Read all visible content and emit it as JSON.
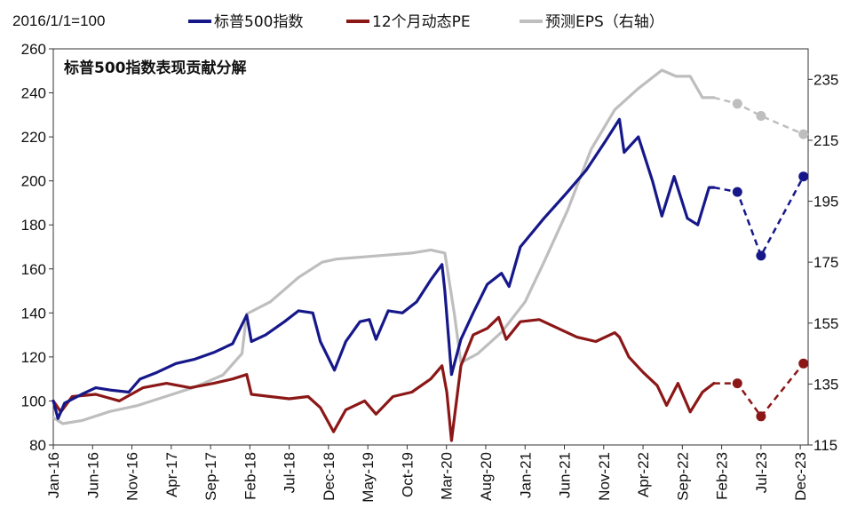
{
  "chart_data": {
    "type": "line",
    "base_note": "2016/1/1=100",
    "inner_title": "标普500指数表现贡献分解",
    "x_tick_labels": [
      "Jan-16",
      "Jun-16",
      "Nov-16",
      "Apr-17",
      "Sep-17",
      "Feb-18",
      "Jul-18",
      "Dec-18",
      "May-19",
      "Oct-19",
      "Mar-20",
      "Aug-20",
      "Jan-21",
      "Jun-21",
      "Nov-21",
      "Apr-22",
      "Sep-22",
      "Feb-23",
      "Jul-23",
      "Dec-23"
    ],
    "x_range": [
      "2016-01",
      "2023-12"
    ],
    "y_left": {
      "min": 80,
      "max": 260,
      "ticks": [
        "80",
        "100",
        "120",
        "140",
        "160",
        "180",
        "200",
        "220",
        "240",
        "260"
      ]
    },
    "y_right": {
      "min": 115,
      "max": 245,
      "ticks": [
        "115",
        "135",
        "155",
        "175",
        "195",
        "215",
        "235"
      ]
    },
    "grid": false,
    "legend_position": "top",
    "series": [
      {
        "name": "标普500指数",
        "color": "#16188A",
        "axis": "left",
        "values": [
          [
            2016.0,
            100
          ],
          [
            2016.05,
            92
          ],
          [
            2016.12,
            99
          ],
          [
            2016.3,
            103
          ],
          [
            2016.45,
            106
          ],
          [
            2016.6,
            105
          ],
          [
            2016.8,
            104
          ],
          [
            2016.92,
            110
          ],
          [
            2017.1,
            113
          ],
          [
            2017.3,
            117
          ],
          [
            2017.5,
            119
          ],
          [
            2017.7,
            122
          ],
          [
            2017.9,
            126
          ],
          [
            2018.05,
            139
          ],
          [
            2018.1,
            127
          ],
          [
            2018.25,
            130
          ],
          [
            2018.45,
            136
          ],
          [
            2018.6,
            141
          ],
          [
            2018.75,
            140
          ],
          [
            2018.83,
            127
          ],
          [
            2018.98,
            114
          ],
          [
            2019.1,
            127
          ],
          [
            2019.25,
            136
          ],
          [
            2019.35,
            137
          ],
          [
            2019.42,
            128
          ],
          [
            2019.55,
            141
          ],
          [
            2019.7,
            140
          ],
          [
            2019.85,
            145
          ],
          [
            2020.0,
            155
          ],
          [
            2020.12,
            162
          ],
          [
            2020.15,
            150
          ],
          [
            2020.22,
            112
          ],
          [
            2020.32,
            128
          ],
          [
            2020.45,
            140
          ],
          [
            2020.6,
            153
          ],
          [
            2020.75,
            158
          ],
          [
            2020.83,
            152
          ],
          [
            2020.95,
            170
          ],
          [
            2021.2,
            183
          ],
          [
            2021.45,
            195
          ],
          [
            2021.65,
            205
          ],
          [
            2021.85,
            218
          ],
          [
            2022.0,
            228
          ],
          [
            2022.05,
            213
          ],
          [
            2022.2,
            220
          ],
          [
            2022.35,
            200
          ],
          [
            2022.45,
            184
          ],
          [
            2022.58,
            202
          ],
          [
            2022.72,
            183
          ],
          [
            2022.83,
            180
          ],
          [
            2022.95,
            197
          ],
          [
            2023.0,
            197
          ]
        ],
        "forecast": [
          [
            2023.0,
            197
          ],
          [
            2023.25,
            195
          ],
          [
            2023.5,
            166
          ],
          [
            2023.95,
            202
          ]
        ]
      },
      {
        "name": "12个月动态PE",
        "color": "#8B1717",
        "axis": "left",
        "values": [
          [
            2016.0,
            100
          ],
          [
            2016.08,
            95
          ],
          [
            2016.2,
            102
          ],
          [
            2016.45,
            103
          ],
          [
            2016.7,
            100
          ],
          [
            2016.95,
            106
          ],
          [
            2017.2,
            108
          ],
          [
            2017.45,
            106
          ],
          [
            2017.7,
            108
          ],
          [
            2017.9,
            110
          ],
          [
            2018.05,
            112
          ],
          [
            2018.1,
            103
          ],
          [
            2018.3,
            102
          ],
          [
            2018.5,
            101
          ],
          [
            2018.7,
            102
          ],
          [
            2018.83,
            97
          ],
          [
            2018.97,
            86
          ],
          [
            2019.1,
            96
          ],
          [
            2019.3,
            100
          ],
          [
            2019.42,
            94
          ],
          [
            2019.6,
            102
          ],
          [
            2019.8,
            104
          ],
          [
            2020.0,
            110
          ],
          [
            2020.12,
            116
          ],
          [
            2020.17,
            104
          ],
          [
            2020.22,
            82
          ],
          [
            2020.32,
            116
          ],
          [
            2020.45,
            130
          ],
          [
            2020.6,
            133
          ],
          [
            2020.72,
            138
          ],
          [
            2020.8,
            128
          ],
          [
            2020.95,
            136
          ],
          [
            2021.15,
            137
          ],
          [
            2021.35,
            133
          ],
          [
            2021.55,
            129
          ],
          [
            2021.75,
            127
          ],
          [
            2021.95,
            131
          ],
          [
            2022.0,
            129
          ],
          [
            2022.1,
            120
          ],
          [
            2022.25,
            113
          ],
          [
            2022.4,
            107
          ],
          [
            2022.5,
            98
          ],
          [
            2022.62,
            108
          ],
          [
            2022.75,
            95
          ],
          [
            2022.88,
            104
          ],
          [
            2023.0,
            108
          ]
        ],
        "forecast": [
          [
            2023.0,
            108
          ],
          [
            2023.25,
            108
          ],
          [
            2023.5,
            93
          ],
          [
            2023.95,
            117
          ]
        ]
      },
      {
        "name": "预测EPS（右轴）",
        "color": "#BEBEBE",
        "axis": "right",
        "values": [
          [
            2016.0,
            124
          ],
          [
            2016.1,
            122
          ],
          [
            2016.3,
            123
          ],
          [
            2016.6,
            126
          ],
          [
            2016.9,
            128
          ],
          [
            2017.2,
            131
          ],
          [
            2017.5,
            134
          ],
          [
            2017.8,
            138
          ],
          [
            2018.0,
            145
          ],
          [
            2018.05,
            158
          ],
          [
            2018.3,
            162
          ],
          [
            2018.6,
            170
          ],
          [
            2018.85,
            175
          ],
          [
            2019.0,
            176
          ],
          [
            2019.4,
            177
          ],
          [
            2019.8,
            178
          ],
          [
            2020.0,
            179
          ],
          [
            2020.15,
            178
          ],
          [
            2020.25,
            158
          ],
          [
            2020.32,
            142
          ],
          [
            2020.5,
            145
          ],
          [
            2020.75,
            152
          ],
          [
            2021.0,
            162
          ],
          [
            2021.2,
            175
          ],
          [
            2021.45,
            192
          ],
          [
            2021.7,
            212
          ],
          [
            2021.95,
            225
          ],
          [
            2022.2,
            232
          ],
          [
            2022.45,
            238
          ],
          [
            2022.6,
            236
          ],
          [
            2022.75,
            236
          ],
          [
            2022.88,
            229
          ],
          [
            2023.0,
            229
          ]
        ],
        "forecast": [
          [
            2023.0,
            229
          ],
          [
            2023.25,
            227
          ],
          [
            2023.5,
            223
          ],
          [
            2023.95,
            217
          ]
        ]
      }
    ]
  }
}
